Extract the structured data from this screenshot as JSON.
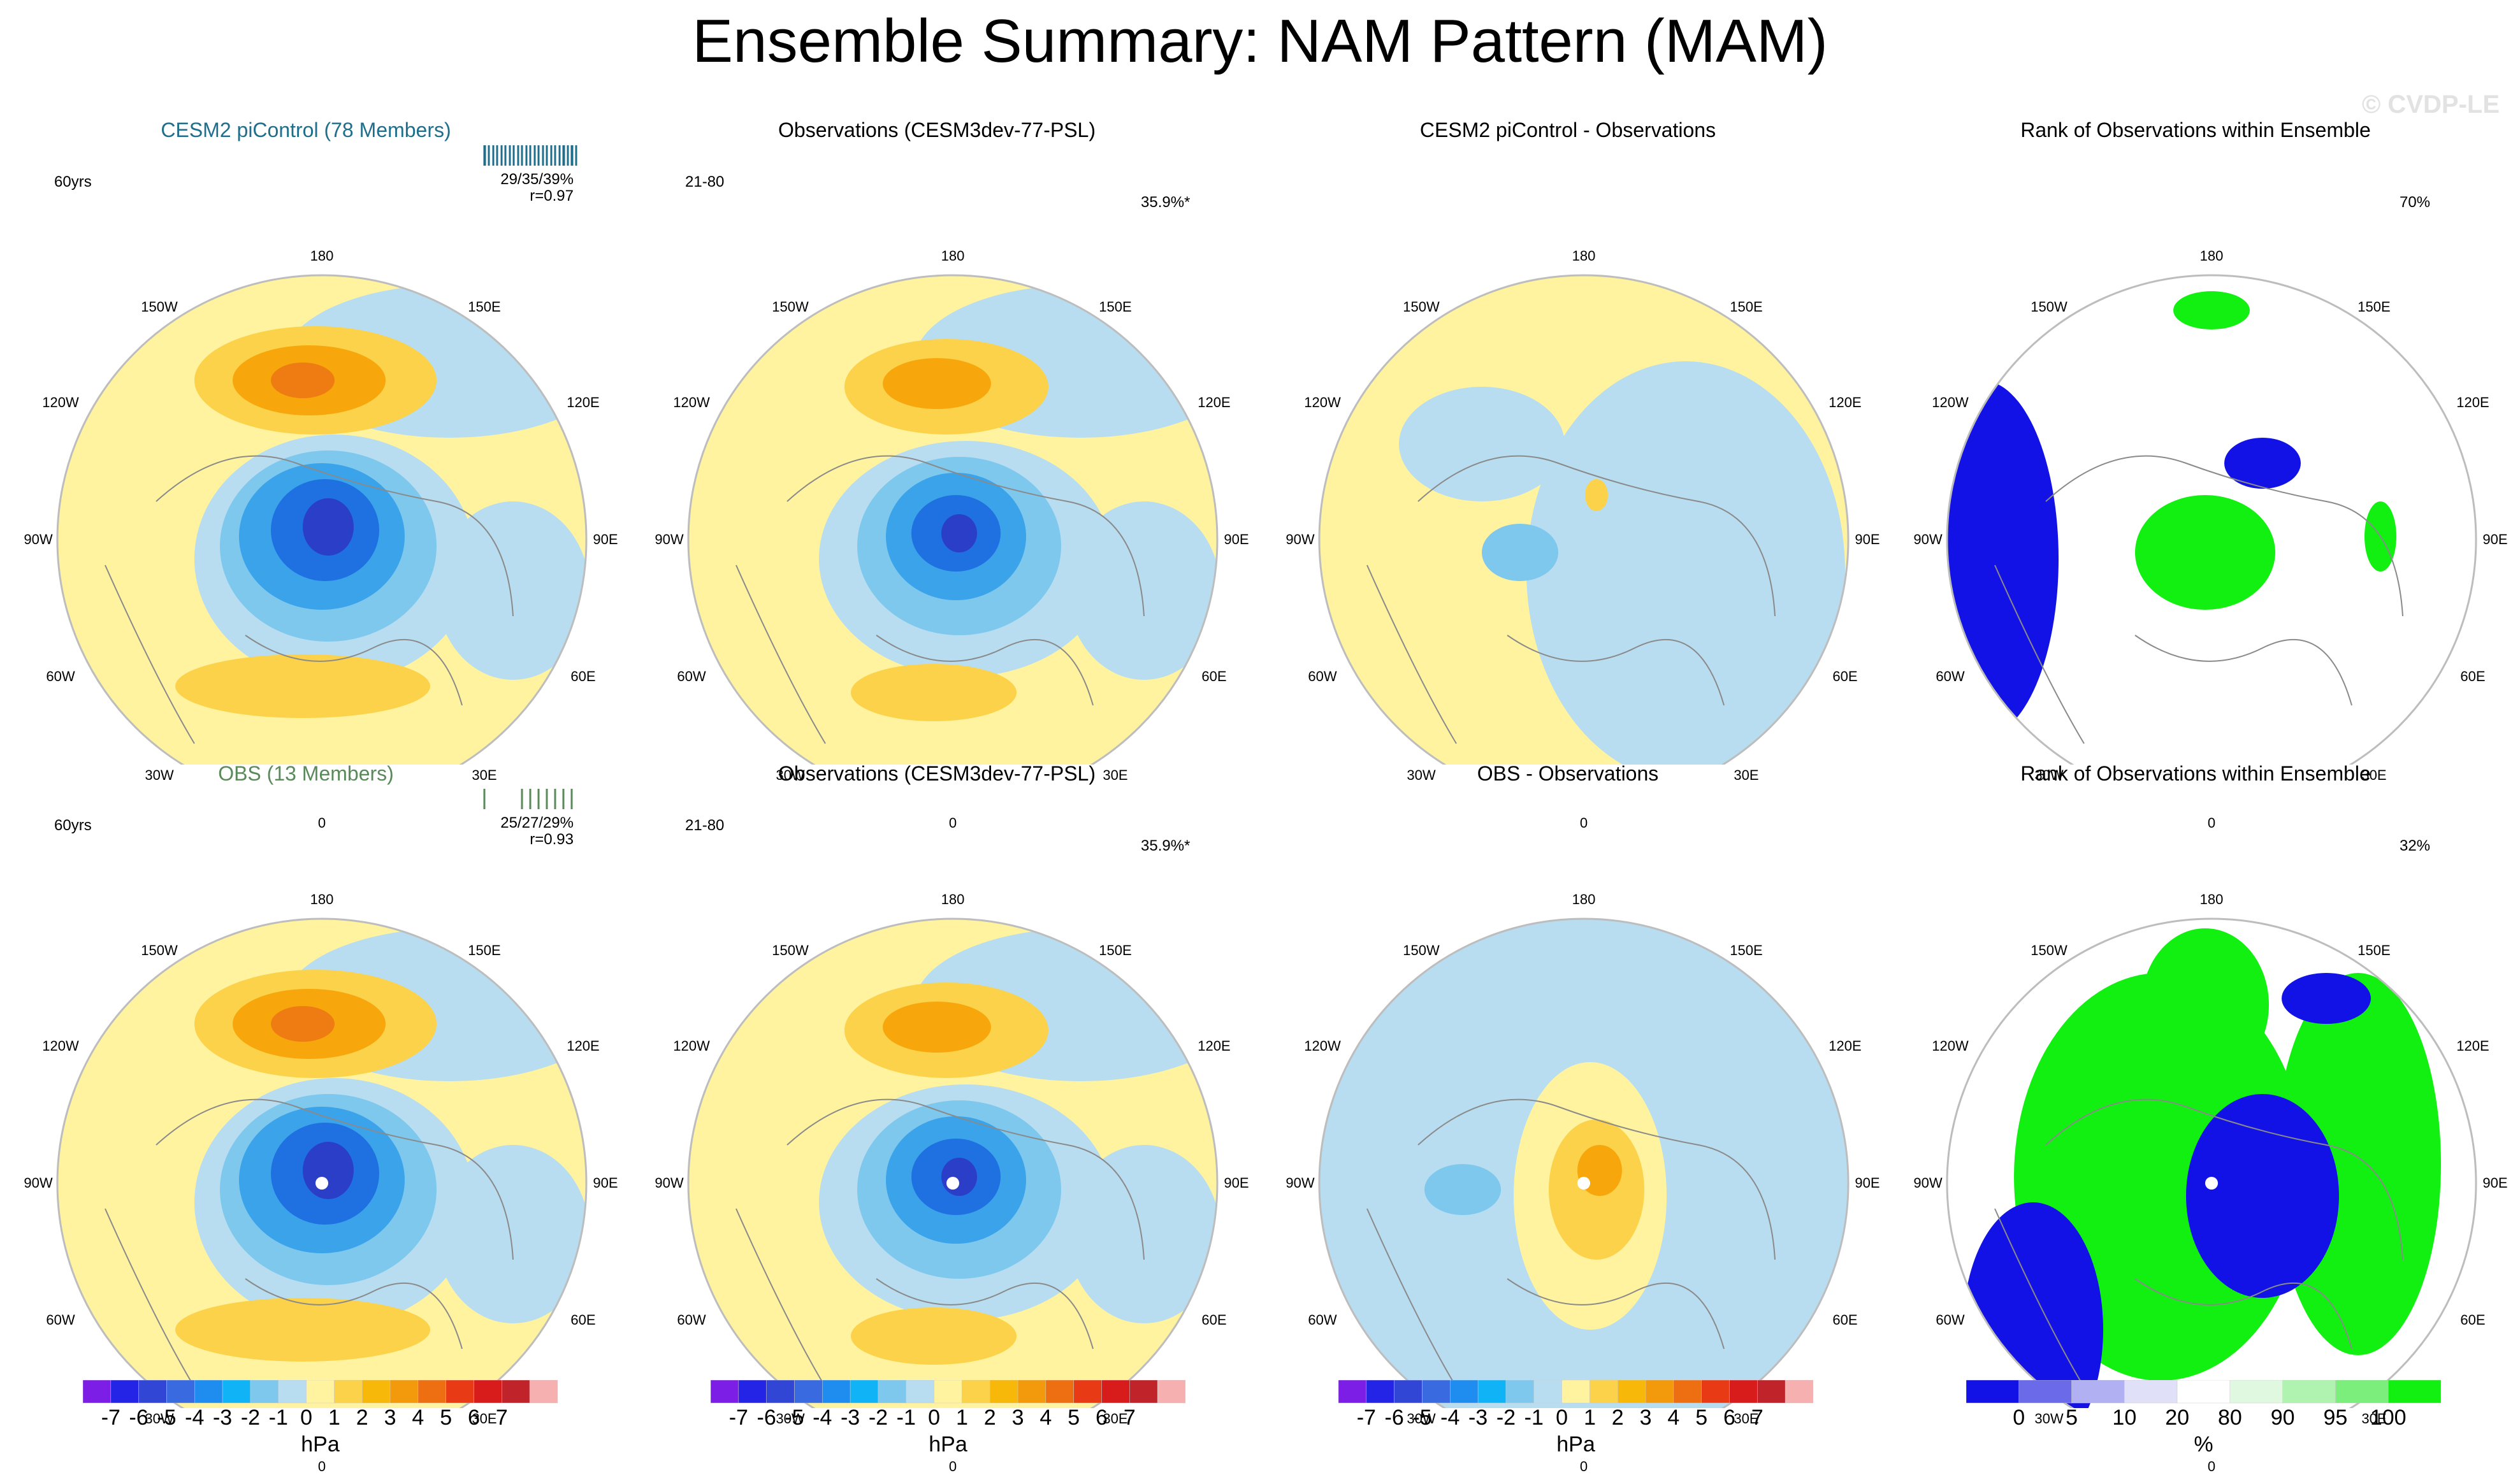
{
  "title": "Ensemble Summary: NAM Pattern (MAM)",
  "watermark": "© CVDP-LE",
  "colors": {
    "ens_title": "#1f6e8c",
    "obs_title": "#5a8a5a",
    "pos1": "#fff3a0",
    "pos2": "#fbd24a",
    "pos3": "#f7a70c",
    "pos4": "#ee7c12",
    "neg1": "#b8ddf0",
    "neg2": "#7ec8ee",
    "neg3": "#3aa3ea",
    "neg4": "#1f70e0",
    "neg5": "#2b3ec8",
    "rank_blue": "#1212e6",
    "rank_green": "#12f012"
  },
  "lon_labels": [
    "180",
    "150W",
    "150E",
    "120W",
    "120E",
    "90W",
    "90E",
    "60W",
    "60E",
    "30W",
    "30E",
    "0"
  ],
  "panels": [
    {
      "title": "CESM2 piControl (78 Members)",
      "left": "60yrs",
      "right": "",
      "stats": [
        "29/35/39%",
        "r=0.97"
      ],
      "title_color": "ens"
    },
    {
      "title": "Observations (CESM3dev-77-PSL)",
      "left": "21-80",
      "right": "35.9%*",
      "stats": [],
      "title_color": "plain"
    },
    {
      "title": "CESM2 piControl - Observations",
      "left": "",
      "right": "",
      "stats": [],
      "title_color": "plain"
    },
    {
      "title": "Rank of Observations within Ensemble",
      "left": "",
      "right": "70%",
      "stats": [],
      "title_color": "plain"
    },
    {
      "title": "OBS (13 Members)",
      "left": "60yrs",
      "right": "",
      "stats": [
        "25/27/29%",
        "r=0.93"
      ],
      "title_color": "obs"
    },
    {
      "title": "Observations (CESM3dev-77-PSL)",
      "left": "21-80",
      "right": "35.9%*",
      "stats": [],
      "title_color": "plain"
    },
    {
      "title": "OBS - Observations",
      "left": "",
      "right": "",
      "stats": [],
      "title_color": "plain"
    },
    {
      "title": "Rank of Observations within Ensemble",
      "left": "",
      "right": "32%",
      "stats": [],
      "title_color": "plain"
    }
  ],
  "colorbars": {
    "hpa": {
      "labels": [
        "-7",
        "-6",
        "-5",
        "-4",
        "-3",
        "-2",
        "-1",
        "0",
        "1",
        "2",
        "3",
        "4",
        "5",
        "6",
        "7"
      ],
      "colors": [
        "#7d1ee6",
        "#2424e6",
        "#3246d6",
        "#3a6ae0",
        "#1f8cf0",
        "#10b4f6",
        "#7ec8ee",
        "#b8ddf0",
        "#fff3a0",
        "#fbd24a",
        "#f7b80a",
        "#f29a0c",
        "#ee6e12",
        "#e83a14",
        "#d81c1c",
        "#c0242a",
        "#f6b0b0"
      ],
      "title": "hPa"
    },
    "pct": {
      "labels": [
        "0",
        "5",
        "10",
        "20",
        "80",
        "90",
        "95",
        "100"
      ],
      "colors": [
        "#1212e6",
        "#6b6bea",
        "#b0b0f2",
        "#e0e0f8",
        "#ffffff",
        "#e0f8e0",
        "#b0f2b0",
        "#7cee7c",
        "#12f012"
      ],
      "title": "%"
    }
  },
  "chart_data": {
    "type": "heatmap",
    "projection": "north polar stereographic",
    "variable": "sea level pressure NAM pattern",
    "units": "hPa",
    "contour_levels": [
      -7,
      -6,
      -5,
      -4,
      -3,
      -2,
      -1,
      0,
      1,
      2,
      3,
      4,
      5,
      6,
      7
    ],
    "rank_levels_pct": [
      0,
      5,
      10,
      20,
      80,
      90,
      95,
      100
    ],
    "panels": [
      {
        "name": "CESM2 piControl (78 Members)",
        "pattern_corr": 0.97,
        "pct_variance_explained": [
          29,
          35,
          39
        ],
        "period": "60yrs",
        "min_hPa": -7,
        "max_hPa": 4
      },
      {
        "name": "Observations (CESM3dev-77-PSL)",
        "period": "21-80",
        "pct_variance_explained": 35.9,
        "min_hPa": -7,
        "max_hPa": 3
      },
      {
        "name": "CESM2 piControl - Observations",
        "min_hPa": -2,
        "max_hPa": 1
      },
      {
        "name": "Rank of Observations within Ensemble",
        "pct_area": 70
      },
      {
        "name": "OBS (13 Members)",
        "pattern_corr": 0.93,
        "pct_variance_explained": [
          25,
          27,
          29
        ],
        "period": "60yrs",
        "min_hPa": -6,
        "max_hPa": 3
      },
      {
        "name": "Observations (CESM3dev-77-PSL)",
        "period": "21-80",
        "pct_variance_explained": 35.9,
        "min_hPa": -7,
        "max_hPa": 3
      },
      {
        "name": "OBS - Observations",
        "min_hPa": -2,
        "max_hPa": 3
      },
      {
        "name": "Rank of Observations within Ensemble",
        "pct_area": 32
      }
    ]
  }
}
